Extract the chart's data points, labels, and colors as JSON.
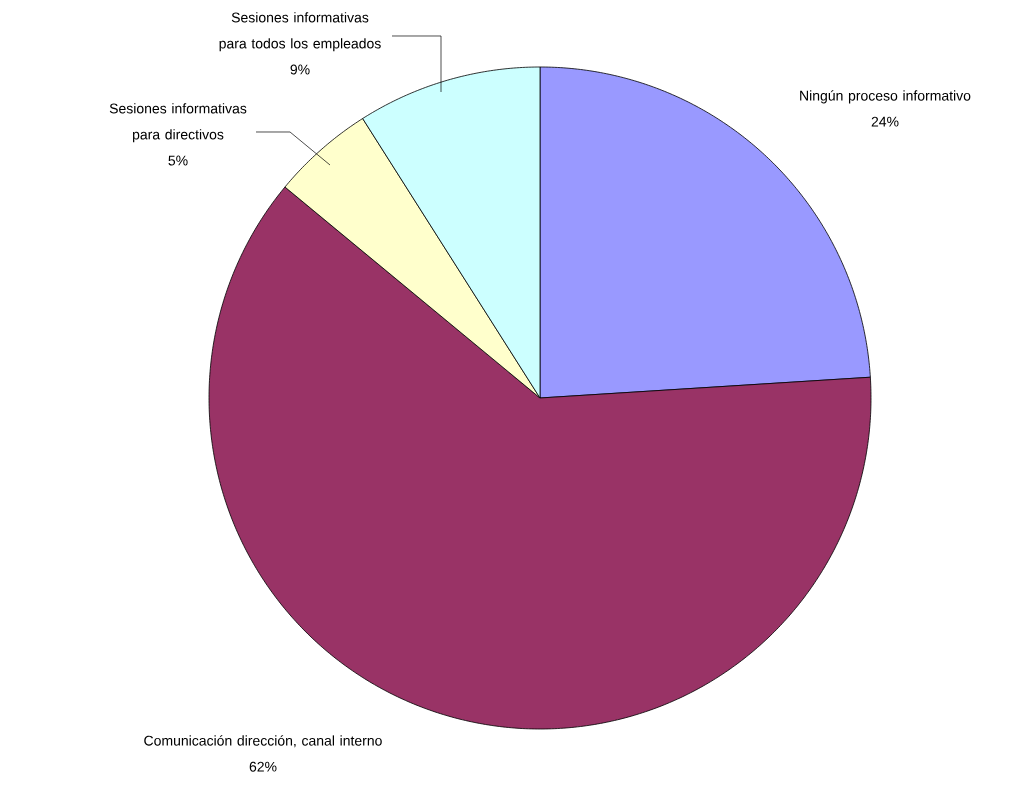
{
  "chart_data": {
    "type": "pie",
    "categories": [
      "Ningún proceso informativo",
      "Comunicación dirección, canal interno",
      "Sesiones informativas para directivos",
      "Sesiones informativas para todos los empleados"
    ],
    "values": [
      24,
      62,
      5,
      9
    ],
    "value_labels": [
      "24%",
      "62%",
      "5%",
      "9%"
    ],
    "colors": [
      "#9999ff",
      "#993366",
      "#ffffcc",
      "#ccffff"
    ]
  }
}
